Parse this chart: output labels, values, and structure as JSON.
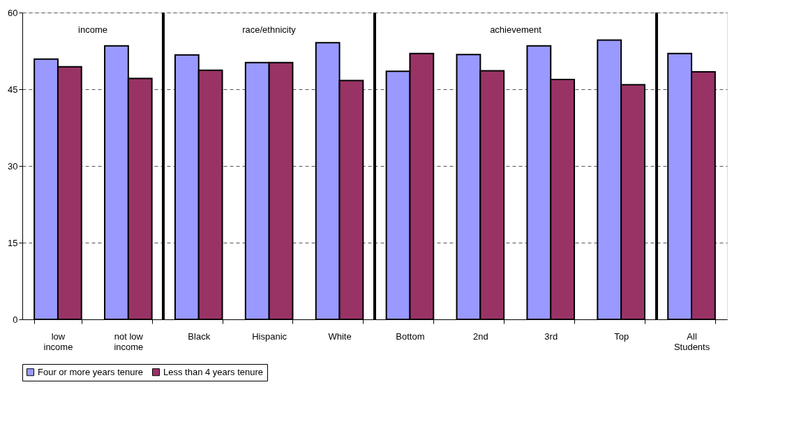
{
  "chart_data": {
    "type": "bar",
    "categories": [
      "low\nincome",
      "not low\nincome",
      "Black",
      "Hispanic",
      "White",
      "Bottom",
      "2nd",
      "3rd",
      "Top",
      "All\nStudents"
    ],
    "series": [
      {
        "name": "Four or more years tenure",
        "color": "#9999ff",
        "values": [
          50.9,
          53.5,
          51.7,
          50.2,
          54.1,
          48.5,
          51.8,
          53.5,
          54.6,
          52.0
        ]
      },
      {
        "name": "Less than 4 years tenure",
        "color": "#993366",
        "values": [
          49.4,
          47.1,
          48.7,
          50.2,
          46.7,
          52.0,
          48.6,
          46.9,
          45.9,
          48.4
        ]
      }
    ],
    "ylim": [
      0,
      60
    ],
    "yticks": [
      0,
      15,
      30,
      45,
      60
    ],
    "grid": "y",
    "legend": "bottom",
    "annotations": [
      "income",
      "race/ethnicity",
      "achievement"
    ]
  }
}
